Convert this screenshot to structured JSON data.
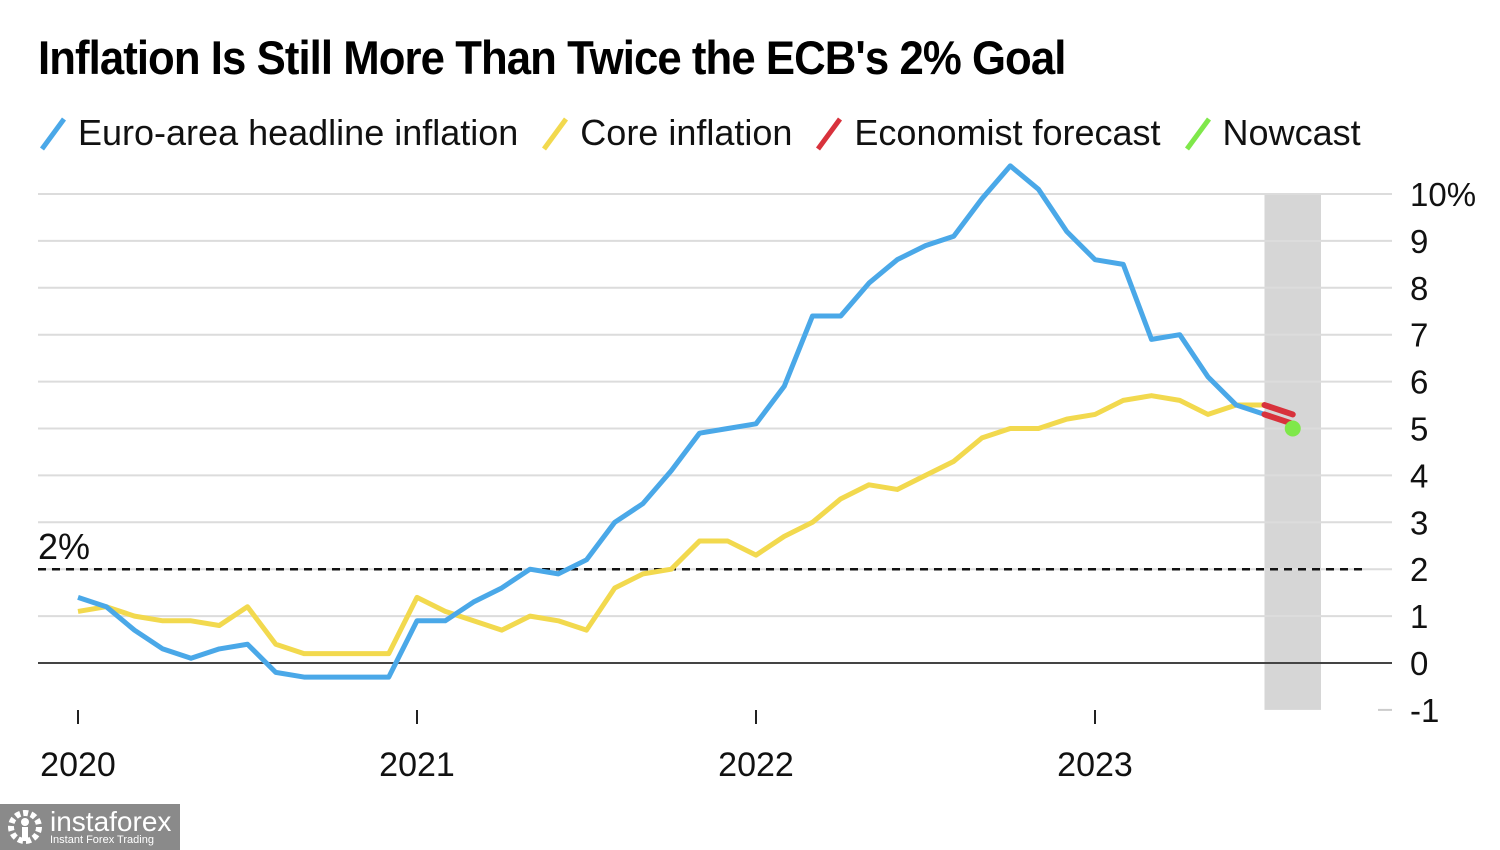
{
  "chart_data": {
    "type": "line",
    "title": "Inflation Is Still More Than Twice the ECB's 2% Goal",
    "xlabel": "",
    "ylabel": "",
    "ylim": [
      -1,
      10
    ],
    "yticks": [
      "-1",
      "0",
      "1",
      "2",
      "3",
      "4",
      "5",
      "6",
      "7",
      "8",
      "9",
      "10%"
    ],
    "xticks": [
      "2020",
      "2021",
      "2022",
      "2023"
    ],
    "x": [
      "2020-01",
      "2020-02",
      "2020-03",
      "2020-04",
      "2020-05",
      "2020-06",
      "2020-07",
      "2020-08",
      "2020-09",
      "2020-10",
      "2020-11",
      "2020-12",
      "2021-01",
      "2021-02",
      "2021-03",
      "2021-04",
      "2021-05",
      "2021-06",
      "2021-07",
      "2021-08",
      "2021-09",
      "2021-10",
      "2021-11",
      "2021-12",
      "2022-01",
      "2022-02",
      "2022-03",
      "2022-04",
      "2022-05",
      "2022-06",
      "2022-07",
      "2022-08",
      "2022-09",
      "2022-10",
      "2022-11",
      "2022-12",
      "2023-01",
      "2023-02",
      "2023-03",
      "2023-04",
      "2023-05",
      "2023-06",
      "2023-07"
    ],
    "grid": true,
    "legend_position": "top",
    "series": [
      {
        "name": "Euro-area headline inflation",
        "color": "#4aa8e8",
        "values": [
          1.4,
          1.2,
          0.7,
          0.3,
          0.1,
          0.3,
          0.4,
          -0.2,
          -0.3,
          -0.3,
          -0.3,
          -0.3,
          0.9,
          0.9,
          1.3,
          1.6,
          2.0,
          1.9,
          2.2,
          3.0,
          3.4,
          4.1,
          4.9,
          5.0,
          5.1,
          5.9,
          7.4,
          7.4,
          8.1,
          8.6,
          8.9,
          9.1,
          9.9,
          10.6,
          10.1,
          9.2,
          8.6,
          8.5,
          6.9,
          7.0,
          6.1,
          5.5,
          5.3
        ]
      },
      {
        "name": "Core inflation",
        "color": "#f2d94e",
        "values": [
          1.1,
          1.2,
          1.0,
          0.9,
          0.9,
          0.8,
          1.2,
          0.4,
          0.2,
          0.2,
          0.2,
          0.2,
          1.4,
          1.1,
          0.9,
          0.7,
          1.0,
          0.9,
          0.7,
          1.6,
          1.9,
          2.0,
          2.6,
          2.6,
          2.3,
          2.7,
          3.0,
          3.5,
          3.8,
          3.7,
          4.0,
          4.3,
          4.8,
          5.0,
          5.0,
          5.2,
          5.3,
          5.6,
          5.7,
          5.6,
          5.3,
          5.5,
          5.5
        ]
      },
      {
        "name": "Economist forecast",
        "color": "#d8323c",
        "segments": [
          {
            "x": [
              "2023-07",
              "2023-08"
            ],
            "values": [
              5.5,
              5.3
            ]
          },
          {
            "x": [
              "2023-07",
              "2023-08"
            ],
            "values": [
              5.3,
              5.1
            ]
          }
        ]
      },
      {
        "name": "Nowcast",
        "color": "#7fe84a",
        "points": [
          {
            "x": "2023-08",
            "value": 5.0
          }
        ]
      }
    ],
    "reference_line": {
      "value": 2,
      "label": "2%",
      "style": "dashed"
    },
    "shaded_range": [
      "2023-07",
      "2023-09"
    ]
  },
  "watermark": {
    "name": "instaforex",
    "tagline": "Instant Forex Trading"
  }
}
